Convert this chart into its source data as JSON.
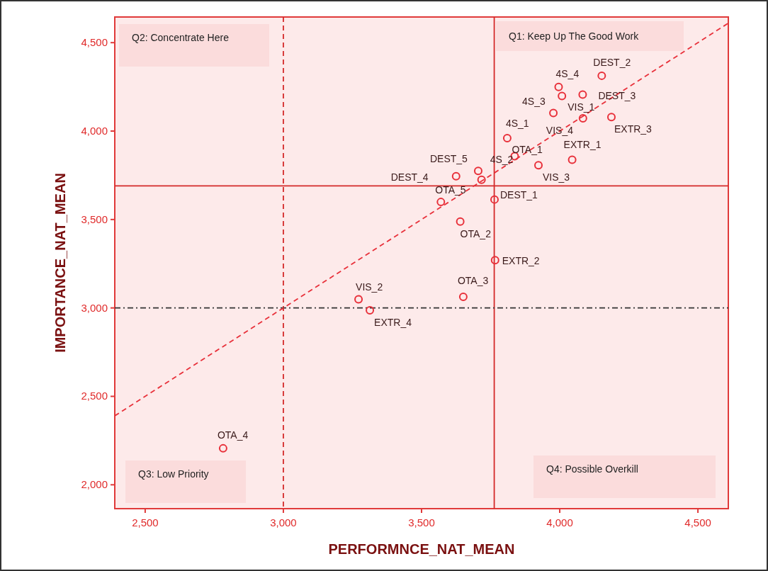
{
  "chart_data": {
    "type": "scatter",
    "xlabel": "PERFORMNCE_NAT_MEAN",
    "ylabel": "IMPORTANCE_NAT_MEAN",
    "xlim": [
      2390,
      4610
    ],
    "ylim": [
      1865,
      4645
    ],
    "xticks": [
      {
        "value": 2500,
        "label": "2,500"
      },
      {
        "value": 3000,
        "label": "3,000"
      },
      {
        "value": 3500,
        "label": "3,500"
      },
      {
        "value": 4000,
        "label": "4,000"
      },
      {
        "value": 4500,
        "label": "4,500"
      }
    ],
    "yticks": [
      {
        "value": 2000,
        "label": "2,000"
      },
      {
        "value": 2500,
        "label": "2,500"
      },
      {
        "value": 3000,
        "label": "3,000"
      },
      {
        "value": 3500,
        "label": "3,500"
      },
      {
        "value": 4000,
        "label": "4,000"
      },
      {
        "value": 4500,
        "label": "4,500"
      }
    ],
    "series": [
      {
        "marker": "circle",
        "color": "#e8303a",
        "x": [
          4152,
          3996,
          4008,
          4083,
          3977,
          4084,
          4187,
          3810,
          3837,
          4045,
          3923,
          3705,
          3717,
          3625,
          3570,
          3764,
          3640,
          3766,
          3651,
          3272,
          3313,
          2782
        ],
        "values": [
          4313,
          4249,
          4198,
          4206,
          4102,
          4072,
          4079,
          3960,
          3858,
          3838,
          3807,
          3775,
          3725,
          3745,
          3599,
          3613,
          3488,
          3270,
          3063,
          3049,
          2987,
          2206
        ]
      },
      {
        "type": "line",
        "color": "#e8303a",
        "line_style": "dashed",
        "x": [
          2390,
          4610
        ],
        "values": [
          2390,
          4610
        ]
      }
    ],
    "ref_lines": [
      {
        "axis": "x",
        "value": 3763,
        "color": "#d42a2a",
        "line_style": "solid"
      },
      {
        "axis": "y",
        "value": 3690,
        "color": "#d42a2a",
        "line_style": "solid"
      },
      {
        "axis": "x",
        "value": 3000,
        "color": "#d42a2a",
        "line_style": "dashed"
      },
      {
        "axis": "y",
        "value": 3000,
        "color": "#333333",
        "line_style": "dashed"
      }
    ],
    "annotations": [
      "Q2: Concentrate Here",
      "Q1: Keep Up The Good Work",
      "Q3: Low Priority",
      "Q4: Possible Overkill",
      {
        "text": "DEST_2",
        "x": 4152,
        "y": 4313
      },
      {
        "text": "4S_4",
        "x": 3996,
        "y": 4249
      },
      {
        "text": "VIS_1",
        "x": 4008,
        "y": 4198
      },
      {
        "text": "DEST_3",
        "x": 4083,
        "y": 4206
      },
      {
        "text": "4S_3",
        "x": 3977,
        "y": 4102
      },
      {
        "text": "VIS_4",
        "x": 4084,
        "y": 4072
      },
      {
        "text": "EXTR_3",
        "x": 4187,
        "y": 4079
      },
      {
        "text": "4S_1",
        "x": 3810,
        "y": 3960
      },
      {
        "text": "OTA_1",
        "x": 3837,
        "y": 3858
      },
      {
        "text": "EXTR_1",
        "x": 4045,
        "y": 3838
      },
      {
        "text": "VIS_3",
        "x": 3923,
        "y": 3807
      },
      {
        "text": "DEST_5",
        "x": 3705,
        "y": 3775
      },
      {
        "text": "4S_2",
        "x": 3717,
        "y": 3725
      },
      {
        "text": "DEST_4",
        "x": 3625,
        "y": 3745
      },
      {
        "text": "OTA_5",
        "x": 3570,
        "y": 3599
      },
      {
        "text": "DEST_1",
        "x": 3764,
        "y": 3613
      },
      {
        "text": "OTA_2",
        "x": 3640,
        "y": 3488
      },
      {
        "text": "EXTR_2",
        "x": 3766,
        "y": 3270
      },
      {
        "text": "OTA_3",
        "x": 3651,
        "y": 3063
      },
      {
        "text": "VIS_2",
        "x": 3272,
        "y": 3049
      },
      {
        "text": "EXTR_4",
        "x": 3313,
        "y": 2987
      },
      {
        "text": "OTA_4",
        "x": 2782,
        "y": 2206
      }
    ]
  }
}
